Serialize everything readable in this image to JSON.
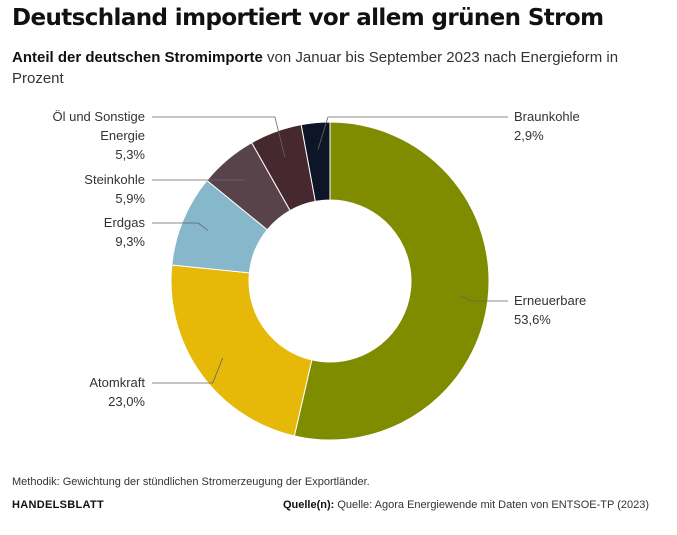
{
  "header": {
    "title": "Deutschland importiert vor allem grünen Strom",
    "subtitle_bold": "Anteil der deutschen Stromimporte",
    "subtitle_rest": " von Januar bis September 2023 nach Energieform in Prozent"
  },
  "chart_data": {
    "type": "pie",
    "donut": true,
    "slices": [
      {
        "label": "Erneuerbare",
        "value": 53.6,
        "value_text": "53,6%",
        "color": "#7f8c00"
      },
      {
        "label": "Atomkraft",
        "value": 23.0,
        "value_text": "23,0%",
        "color": "#e6b808"
      },
      {
        "label": "Erdgas",
        "value": 9.3,
        "value_text": "9,3%",
        "color": "#86b7cb"
      },
      {
        "label": "Steinkohle",
        "value": 5.9,
        "value_text": "5,9%",
        "color": "#59434a"
      },
      {
        "label": "Öl und Sonstige Energie",
        "label_lines": [
          "Öl und Sonstige",
          "Energie"
        ],
        "value": 5.3,
        "value_text": "5,3%",
        "color": "#45292f"
      },
      {
        "label": "Braunkohle",
        "value": 2.9,
        "value_text": "2,9%",
        "color": "#0d1526"
      }
    ]
  },
  "footer": {
    "method_note": "Methodik: Gewichtung der stündlichen Stromerzeugung der Exportländer.",
    "brand": "HANDELSBLATT",
    "source_label": "Quelle(n):",
    "source_text": " Quelle: Agora Energiewende mit Daten von ENTSOE-TP (2023)"
  }
}
